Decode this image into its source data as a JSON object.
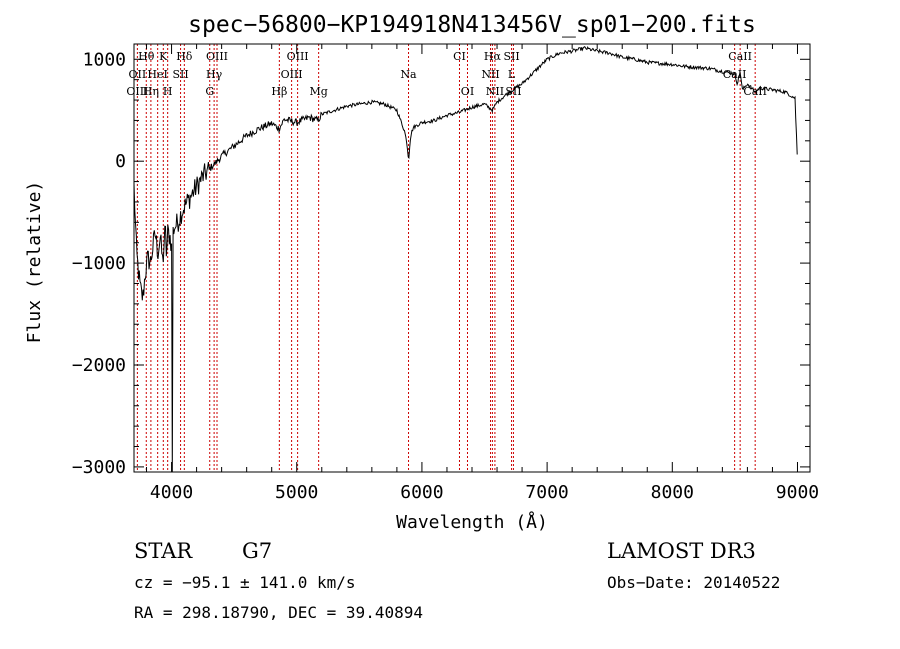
{
  "chart_data": {
    "type": "line",
    "title": "spec−56800−KP194918N413456V_sp01−200.fits",
    "xlabel": "Wavelength (Å)",
    "ylabel": "Flux (relative)",
    "xlim": [
      3700,
      9100
    ],
    "ylim": [
      -3050,
      1150
    ],
    "xticks": [
      4000,
      5000,
      6000,
      7000,
      8000,
      9000
    ],
    "xtick_labels": [
      "4000",
      "5000",
      "6000",
      "7000",
      "8000",
      "9000"
    ],
    "yticks": [
      -3000,
      -2000,
      -1000,
      0,
      1000
    ],
    "ytick_labels": [
      "−3000",
      "−2000",
      "−1000",
      "0",
      "1000"
    ],
    "series": [
      {
        "name": "spectrum",
        "x": [
          3700,
          3720,
          3750,
          3770,
          3790,
          3810,
          3830,
          3850,
          3870,
          3890,
          3910,
          3930,
          3950,
          3960,
          3970,
          3990,
          4000,
          4010,
          4020,
          4050,
          4080,
          4100,
          4150,
          4200,
          4250,
          4300,
          4330,
          4350,
          4400,
          4500,
          4600,
          4700,
          4800,
          4860,
          4900,
          5000,
          5100,
          5170,
          5200,
          5300,
          5400,
          5500,
          5600,
          5700,
          5800,
          5860,
          5880,
          5890,
          5895,
          5900,
          5910,
          5930,
          6000,
          6100,
          6200,
          6300,
          6400,
          6500,
          6563,
          6600,
          6700,
          6800,
          6900,
          7000,
          7100,
          7200,
          7300,
          7400,
          7500,
          7600,
          7700,
          7800,
          7900,
          8000,
          8100,
          8200,
          8300,
          8400,
          8498,
          8520,
          8542,
          8560,
          8600,
          8662,
          8700,
          8800,
          8900,
          8980,
          9000
        ],
        "values": [
          -250,
          -900,
          -1250,
          -1350,
          -1100,
          -950,
          -1000,
          -850,
          -700,
          -900,
          -750,
          -1000,
          -650,
          -950,
          -700,
          -750,
          -850,
          -700,
          -650,
          -600,
          -500,
          -450,
          -350,
          -250,
          -150,
          -80,
          -40,
          -20,
          50,
          150,
          250,
          320,
          370,
          320,
          410,
          380,
          430,
          400,
          460,
          500,
          540,
          560,
          580,
          560,
          500,
          300,
          180,
          50,
          30,
          120,
          250,
          330,
          380,
          400,
          450,
          480,
          530,
          560,
          500,
          580,
          680,
          760,
          880,
          1000,
          1060,
          1080,
          1110,
          1080,
          1060,
          1020,
          1000,
          970,
          960,
          950,
          930,
          920,
          910,
          880,
          860,
          760,
          880,
          700,
          760,
          680,
          720,
          700,
          680,
          620,
          0
        ]
      }
    ],
    "line_markers": [
      {
        "label": "Hθ",
        "wavelength": 3798,
        "row": 0
      },
      {
        "label": "K",
        "wavelength": 3934,
        "row": 0
      },
      {
        "label": "Hδ",
        "wavelength": 4102,
        "row": 0
      },
      {
        "label": "OIII",
        "wavelength": 4363,
        "row": 0
      },
      {
        "label": "OIII",
        "wavelength": 5007,
        "row": 0
      },
      {
        "label": "CI",
        "wavelength": 6300,
        "row": 0
      },
      {
        "label": "Hα",
        "wavelength": 6563,
        "row": 0
      },
      {
        "label": "SII",
        "wavelength": 6716,
        "row": 0
      },
      {
        "label": "CaII",
        "wavelength": 8542,
        "row": 0
      },
      {
        "label": "OII",
        "wavelength": 3727,
        "row": 1
      },
      {
        "label": "HeI",
        "wavelength": 3889,
        "row": 1
      },
      {
        "label": "SII",
        "wavelength": 4072,
        "row": 1
      },
      {
        "label": "Hγ",
        "wavelength": 4340,
        "row": 1
      },
      {
        "label": "OIII",
        "wavelength": 4959,
        "row": 1
      },
      {
        "label": "Na",
        "wavelength": 5893,
        "row": 1
      },
      {
        "label": "NII",
        "wavelength": 6548,
        "row": 1
      },
      {
        "label": "L",
        "wavelength": 6716,
        "row": 1
      },
      {
        "label": "CaII",
        "wavelength": 8498,
        "row": 1
      },
      {
        "label": "OIII",
        "wavelength": 3727,
        "row": 2
      },
      {
        "label": "Hη",
        "wavelength": 3835,
        "row": 2
      },
      {
        "label": "H",
        "wavelength": 3969,
        "row": 2
      },
      {
        "label": "G",
        "wavelength": 4305,
        "row": 2
      },
      {
        "label": "Hβ",
        "wavelength": 4861,
        "row": 2
      },
      {
        "label": "Mg",
        "wavelength": 5175,
        "row": 2
      },
      {
        "label": "OI",
        "wavelength": 6364,
        "row": 2
      },
      {
        "label": "NII",
        "wavelength": 6583,
        "row": 2
      },
      {
        "label": "SII",
        "wavelength": 6731,
        "row": 2
      },
      {
        "label": "CaII",
        "wavelength": 8662,
        "row": 2
      }
    ],
    "marker_color": "#cc0000"
  },
  "info": {
    "object_class": "STAR",
    "subclass": "G7",
    "survey": "LAMOST DR3",
    "velocity": "cz = −95.1 ± 141.0 km/s",
    "obs_date": "Obs−Date: 20140522",
    "coords": "RA = 298.18790, DEC =  39.40894"
  }
}
